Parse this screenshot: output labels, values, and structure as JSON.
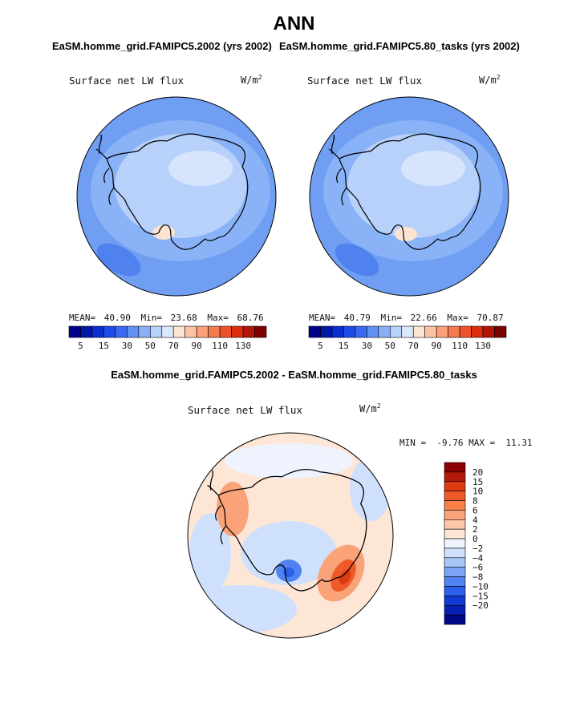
{
  "title": "ANN",
  "panel_left": {
    "case_title": "EaSM.homme_grid.FAMIPC5.2002 (yrs 2002)",
    "variable": "Surface net LW flux",
    "units_base": "W/m",
    "units_exp": "2",
    "stats": {
      "mean_label": "MEAN=",
      "mean": "40.90",
      "min_label": "Min=",
      "min": "23.68",
      "max_label": "Max=",
      "max": "68.76"
    }
  },
  "panel_right": {
    "case_title": "EaSM.homme_grid.FAMIPC5.80_tasks (yrs 2002)",
    "variable": "Surface net LW flux",
    "units_base": "W/m",
    "units_exp": "2",
    "stats": {
      "mean_label": "MEAN=",
      "mean": "40.79",
      "min_label": "Min=",
      "min": "22.66",
      "max_label": "Max=",
      "max": "70.87"
    }
  },
  "panel_diff": {
    "title": "EaSM.homme_grid.FAMIPC5.2002 - EaSM.homme_grid.FAMIPC5.80_tasks",
    "variable": "Surface net LW flux",
    "units_base": "W/m",
    "units_exp": "2",
    "minmax_text": "MIN =  -9.76 MAX =  11.31"
  },
  "chart_data": [
    {
      "type": "heatmap",
      "title": "EaSM.homme_grid.FAMIPC5.2002 (yrs 2002)",
      "variable": "Surface net LW flux",
      "units": "W/m2",
      "projection": "south polar stereographic",
      "colorbar_levels": [
        5,
        10,
        15,
        20,
        30,
        40,
        50,
        60,
        70,
        80,
        90,
        100,
        110,
        120,
        130
      ],
      "colorbar_tick_labels": [
        "5",
        "15",
        "30",
        "50",
        "70",
        "90",
        "110",
        "130"
      ],
      "colors": [
        "#00008b",
        "#0018a8",
        "#0a2ecf",
        "#1c4ce8",
        "#3a68f0",
        "#6190f5",
        "#8aaff7",
        "#b8d1fa",
        "#dbe8fc",
        "#fde3d2",
        "#fcc3a3",
        "#fba07a",
        "#f57a50",
        "#ee522b",
        "#de2c10",
        "#b4150a",
        "#7d0303"
      ],
      "field_color_hint": "#6f9ef2",
      "mean": 40.9,
      "min": 23.68,
      "max": 68.76
    },
    {
      "type": "heatmap",
      "title": "EaSM.homme_grid.FAMIPC5.80_tasks (yrs 2002)",
      "variable": "Surface net LW flux",
      "units": "W/m2",
      "projection": "south polar stereographic",
      "colorbar_levels": [
        5,
        10,
        15,
        20,
        30,
        40,
        50,
        60,
        70,
        80,
        90,
        100,
        110,
        120,
        130
      ],
      "colorbar_tick_labels": [
        "5",
        "15",
        "30",
        "50",
        "70",
        "90",
        "110",
        "130"
      ],
      "colors": [
        "#00008b",
        "#0018a8",
        "#0a2ecf",
        "#1c4ce8",
        "#3a68f0",
        "#6190f5",
        "#8aaff7",
        "#b8d1fa",
        "#dbe8fc",
        "#fde3d2",
        "#fcc3a3",
        "#fba07a",
        "#f57a50",
        "#ee522b",
        "#de2c10",
        "#b4150a",
        "#7d0303"
      ],
      "mean": 40.79,
      "min": 22.66,
      "max": 70.87
    },
    {
      "type": "heatmap",
      "title": "EaSM.homme_grid.FAMIPC5.2002 - EaSM.homme_grid.FAMIPC5.80_tasks",
      "variable": "Surface net LW flux",
      "units": "W/m2",
      "projection": "south polar stereographic",
      "colorbar_levels": [
        20,
        15,
        10,
        8,
        6,
        4,
        2,
        0,
        -2,
        -4,
        -6,
        -8,
        -10,
        -15,
        -20
      ],
      "colorbar_tick_labels": [
        "20",
        "15",
        "10",
        "8",
        "6",
        "4",
        "2",
        "0",
        "−2",
        "−4",
        "−6",
        "−8",
        "−10",
        "−15",
        "−20"
      ],
      "colors": [
        "#8b0000",
        "#b41a08",
        "#dc3a10",
        "#f05a28",
        "#f78048",
        "#faa278",
        "#fcc6a8",
        "#fde6d6",
        "#eef3fd",
        "#cfe0fc",
        "#a9c6f9",
        "#7ba4f5",
        "#5082f1",
        "#2a5fe9",
        "#0f3ad6",
        "#0520b0",
        "#000a86"
      ],
      "min": -9.76,
      "max": 11.31
    }
  ]
}
